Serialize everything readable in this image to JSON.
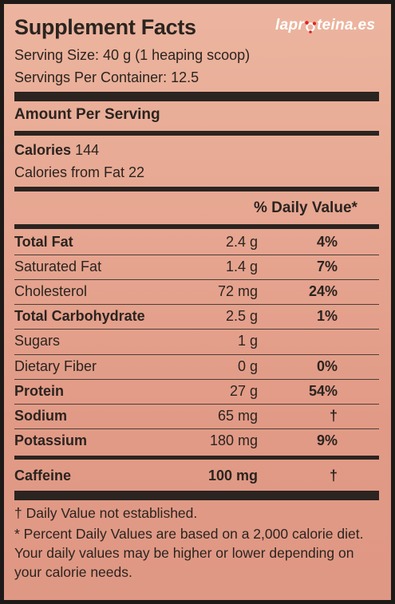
{
  "title": "Supplement Facts",
  "brand": {
    "part1": "lapr",
    "part2": "teina.es"
  },
  "serving": {
    "size": "Serving Size: 40 g (1 heaping scoop)",
    "per_container": "Servings Per Container: 12.5"
  },
  "amount_per_serving": "Amount Per Serving",
  "calories": {
    "label": "Calories",
    "value": "144",
    "from_fat": "Calories from Fat 22"
  },
  "dv_header": "% Daily Value*",
  "nutrients": [
    {
      "name": "Total Fat",
      "amount": "2.4 g",
      "dv": "4%"
    },
    {
      "name": "Saturated Fat",
      "amount": "1.4 g",
      "dv": "7%"
    },
    {
      "name": "Cholesterol",
      "amount": "72 mg",
      "dv": "24%"
    },
    {
      "name": "Total Carbohydrate",
      "amount": "2.5 g",
      "dv": "1%"
    },
    {
      "name": "Sugars",
      "amount": "1 g",
      "dv": ""
    },
    {
      "name": "Dietary Fiber",
      "amount": "0 g",
      "dv": "0%"
    },
    {
      "name": "Protein",
      "amount": "27 g",
      "dv": "54%"
    },
    {
      "name": "Sodium",
      "amount": "65 mg",
      "dv": "†"
    },
    {
      "name": "Potassium",
      "amount": "180 mg",
      "dv": "9%"
    }
  ],
  "caffeine": {
    "name": "Caffeine",
    "amount": "100 mg",
    "dv": "†"
  },
  "footnotes": {
    "dagger": "† Daily Value not established.",
    "percent": "* Percent Daily Values are based on a 2,000 calorie diet. Your daily values may be higher or lower depending on your calorie needs."
  },
  "colors": {
    "background": "#e6a590",
    "text": "#2b2420",
    "logo_text": "#ffffff",
    "logo_accent": "#e02020"
  }
}
